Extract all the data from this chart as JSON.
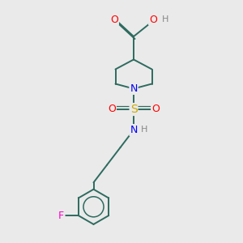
{
  "bg_color": "#eaeaea",
  "bond_color": "#2d6b5e",
  "atom_colors": {
    "O": "#ff0000",
    "N": "#0000ff",
    "S": "#ccaa00",
    "F": "#ff00cc",
    "H": "#888888",
    "C": "#2d6b5e"
  }
}
